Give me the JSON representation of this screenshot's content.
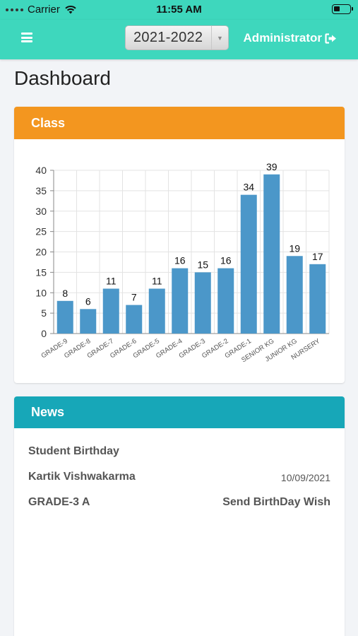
{
  "status_bar": {
    "carrier": "Carrier",
    "time": "11:55 AM"
  },
  "navbar": {
    "menu_icon": "hamburger-menu-icon",
    "academic_year": "2021-2022",
    "user_label": "Administrator",
    "logout_icon": "sign-out-icon",
    "bg_color": "#3ed7bd"
  },
  "page": {
    "title": "Dashboard"
  },
  "class_panel": {
    "title": "Class",
    "header_color": "#f3961f"
  },
  "chart_data": {
    "type": "bar",
    "categories": [
      "GRADE-9",
      "GRADE-8",
      "GRADE-7",
      "GRADE-6",
      "GRADE-5",
      "GRADE-4",
      "GRADE-3",
      "GRADE-2",
      "GRADE-1",
      "SENIOR KG",
      "JUNIOR KG",
      "NURSERY"
    ],
    "values": [
      8,
      6,
      11,
      7,
      11,
      16,
      15,
      16,
      34,
      39,
      19,
      17
    ],
    "ylim": [
      0,
      40
    ],
    "yticks": [
      0,
      5,
      10,
      15,
      20,
      25,
      30,
      35,
      40
    ],
    "grid": true,
    "bar_color": "#4b97c9",
    "data_labels": true
  },
  "news_panel": {
    "title": "News",
    "header_color": "#17a7b8",
    "item": {
      "heading": "Student Birthday",
      "student_name": "Kartik Vishwakarma",
      "date": "10/09/2021",
      "class_section": "GRADE-3 A",
      "action_label": "Send BirthDay Wish"
    }
  }
}
